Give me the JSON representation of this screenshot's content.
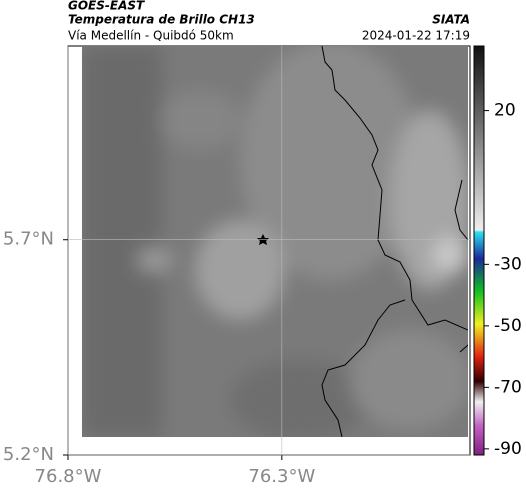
{
  "header": {
    "title": "GOES-EAST",
    "subtitle": "Temperatura de Brillo CH13",
    "source": "SIATA",
    "route": "Vía Medellín - Quibdó 50km",
    "timestamp": "2024-01-22 17:19"
  },
  "map": {
    "xlim": [
      -76.8,
      -75.86
    ],
    "ylim": [
      5.2,
      6.15
    ],
    "xticks": [
      {
        "value": -76.8,
        "label": "76.8°W"
      },
      {
        "value": -76.3,
        "label": "76.3°W"
      }
    ],
    "yticks": [
      {
        "value": 5.2,
        "label": "5.2°N"
      },
      {
        "value": 5.7,
        "label": "5.7°N"
      }
    ],
    "grid": true
  },
  "colorbar": {
    "lim": [
      -92,
      41
    ],
    "ticks": [
      20,
      -30,
      -50,
      -70,
      -90
    ]
  }
}
